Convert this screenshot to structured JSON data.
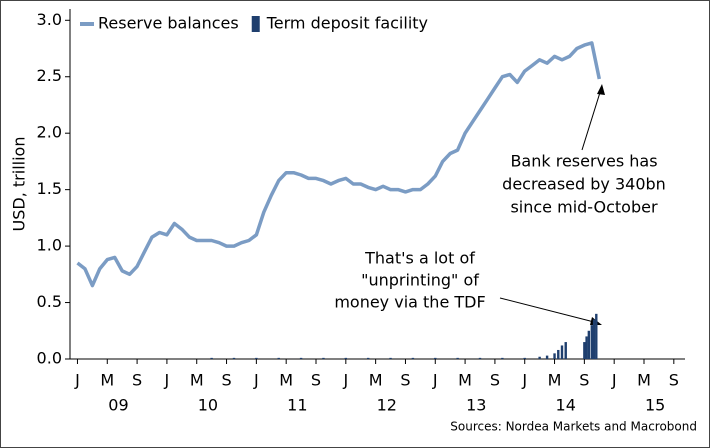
{
  "chart_data": {
    "type": "line",
    "y_label": "USD, trillion",
    "source": "Sources: Nordea Markets and Macrobond",
    "xlim": [
      -1,
      81.5
    ],
    "ylim": [
      0,
      3.1
    ],
    "yticks": [
      {
        "value": 0,
        "label": "0.0"
      },
      0.5,
      {
        "value": 1,
        "label": "1.0"
      },
      1.5,
      {
        "value": 2,
        "label": "2.0"
      },
      2.5,
      {
        "value": 3,
        "label": "3.0"
      }
    ],
    "xticks": [
      {
        "value": 0,
        "label": "J"
      },
      {
        "value": 4,
        "label": "M"
      },
      {
        "value": 8,
        "label": "S"
      },
      {
        "value": 12,
        "label": "J"
      },
      {
        "value": 16,
        "label": "M"
      },
      {
        "value": 20,
        "label": "S"
      },
      {
        "value": 24,
        "label": "J"
      },
      {
        "value": 28,
        "label": "M"
      },
      {
        "value": 32,
        "label": "S"
      },
      {
        "value": 36,
        "label": "J"
      },
      {
        "value": 40,
        "label": "M"
      },
      {
        "value": 44,
        "label": "S"
      },
      {
        "value": 48,
        "label": "J"
      },
      {
        "value": 52,
        "label": "M"
      },
      {
        "value": 56,
        "label": "S"
      },
      {
        "value": 60,
        "label": "J"
      },
      {
        "value": 64,
        "label": "M"
      },
      {
        "value": 68,
        "label": "S"
      },
      {
        "value": 72,
        "label": "J"
      },
      {
        "value": 76,
        "label": "M"
      },
      {
        "value": 80,
        "label": "S"
      }
    ],
    "year_labels": [
      {
        "value": 5.5,
        "label": "09"
      },
      {
        "value": 17.5,
        "label": "10"
      },
      {
        "value": 29.5,
        "label": "11"
      },
      {
        "value": 41.5,
        "label": "12"
      },
      {
        "value": 53.5,
        "label": "13"
      },
      {
        "value": 65.5,
        "label": "14"
      },
      {
        "value": 77.5,
        "label": "15"
      }
    ],
    "series": [
      {
        "name": "Reserve balances",
        "color": "#7b9cc4",
        "type": "line",
        "x": [
          0,
          1,
          2,
          3,
          4,
          5,
          6,
          7,
          8,
          9,
          10,
          11,
          12,
          13,
          14,
          15,
          16,
          17,
          18,
          19,
          20,
          21,
          22,
          23,
          24,
          25,
          26,
          27,
          28,
          29,
          30,
          31,
          32,
          33,
          34,
          35,
          36,
          37,
          38,
          39,
          40,
          41,
          42,
          43,
          44,
          45,
          46,
          47,
          48,
          49,
          50,
          51,
          52,
          53,
          54,
          55,
          56,
          57,
          58,
          59,
          60,
          61,
          62,
          63,
          64,
          65,
          66,
          67,
          68,
          69,
          70
        ],
        "values": [
          0.85,
          0.8,
          0.65,
          0.8,
          0.88,
          0.9,
          0.78,
          0.75,
          0.82,
          0.95,
          1.08,
          1.12,
          1.1,
          1.2,
          1.15,
          1.08,
          1.05,
          1.05,
          1.05,
          1.03,
          1.0,
          1.0,
          1.03,
          1.05,
          1.1,
          1.3,
          1.45,
          1.58,
          1.65,
          1.65,
          1.63,
          1.6,
          1.6,
          1.58,
          1.55,
          1.58,
          1.6,
          1.55,
          1.55,
          1.52,
          1.5,
          1.53,
          1.5,
          1.5,
          1.48,
          1.5,
          1.5,
          1.55,
          1.62,
          1.75,
          1.82,
          1.85,
          2.0,
          2.1,
          2.2,
          2.3,
          2.4,
          2.5,
          2.52,
          2.45,
          2.55,
          2.6,
          2.65,
          2.62,
          2.68,
          2.65,
          2.68,
          2.75,
          2.78,
          2.8,
          2.48
        ]
      },
      {
        "name": "Term deposit facility",
        "color": "#1f3f6e",
        "type": "bar",
        "x": [
          18,
          21,
          24,
          27,
          30,
          33,
          36,
          39,
          42,
          45,
          48,
          51,
          54,
          57,
          60,
          62,
          63,
          64,
          64.5,
          65,
          65.5,
          68,
          68.3,
          68.6,
          69,
          69.3,
          69.6
        ],
        "values": [
          0.01,
          0.01,
          0.01,
          0.01,
          0.01,
          0.01,
          0.01,
          0.01,
          0.01,
          0.01,
          0.01,
          0.01,
          0.01,
          0.01,
          0.01,
          0.02,
          0.03,
          0.05,
          0.08,
          0.12,
          0.15,
          0.15,
          0.2,
          0.25,
          0.3,
          0.35,
          0.4
        ]
      }
    ],
    "annotations": [
      {
        "text": [
          "Bank reserves has",
          "decreased by 340bn",
          "since mid-October"
        ]
      },
      {
        "text": [
          "That's a lot of",
          "\"unprinting\" of",
          "money via the TDF"
        ]
      }
    ]
  }
}
